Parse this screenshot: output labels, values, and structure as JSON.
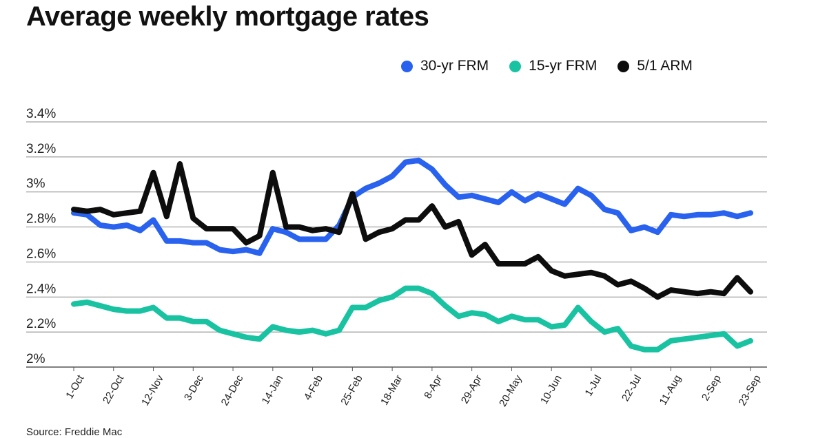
{
  "header": {
    "title": "Average weekly mortgage rates"
  },
  "footer": {
    "source": "Source: Freddie Mac"
  },
  "chart_data": {
    "type": "line",
    "title": "Average weekly mortgage rates",
    "xlabel": "",
    "ylabel": "",
    "ylim": [
      2.0,
      3.4
    ],
    "yticks": [
      2.0,
      2.2,
      2.4,
      2.6,
      2.8,
      3.0,
      3.2,
      3.4
    ],
    "ytick_labels": [
      "2%",
      "2.2%",
      "2.4%",
      "2.6%",
      "2.8%",
      "3%",
      "3.2%",
      "3.4%"
    ],
    "x_tick_labels": [
      "1-Oct",
      "22-Oct",
      "12-Nov",
      "3-Dec",
      "24-Dec",
      "14-Jan",
      "4-Feb",
      "25-Feb",
      "18-Mar",
      "8-Apr",
      "29-Apr",
      "20-May",
      "10-Jun",
      "1-Jul",
      "22-Jul",
      "11-Aug",
      "2-Sep",
      "23-Sep"
    ],
    "x_tick_every": 3,
    "grid": true,
    "legend_position": "top-right",
    "series": [
      {
        "name": "30-yr FRM",
        "color": "#2962ee",
        "values": [
          2.88,
          2.87,
          2.81,
          2.8,
          2.81,
          2.78,
          2.84,
          2.72,
          2.72,
          2.71,
          2.71,
          2.67,
          2.66,
          2.67,
          2.65,
          2.79,
          2.77,
          2.73,
          2.73,
          2.73,
          2.81,
          2.97,
          3.02,
          3.05,
          3.09,
          3.17,
          3.18,
          3.13,
          3.04,
          2.97,
          2.98,
          2.96,
          2.94,
          3.0,
          2.95,
          2.99,
          2.96,
          2.93,
          3.02,
          2.98,
          2.9,
          2.88,
          2.78,
          2.8,
          2.77,
          2.87,
          2.86,
          2.87,
          2.87,
          2.88,
          2.86,
          2.88
        ]
      },
      {
        "name": "15-yr FRM",
        "color": "#19c3a2",
        "values": [
          2.36,
          2.37,
          2.35,
          2.33,
          2.32,
          2.32,
          2.34,
          2.28,
          2.28,
          2.26,
          2.26,
          2.21,
          2.19,
          2.17,
          2.16,
          2.23,
          2.21,
          2.2,
          2.21,
          2.19,
          2.21,
          2.34,
          2.34,
          2.38,
          2.4,
          2.45,
          2.45,
          2.42,
          2.35,
          2.29,
          2.31,
          2.3,
          2.26,
          2.29,
          2.27,
          2.27,
          2.23,
          2.24,
          2.34,
          2.26,
          2.2,
          2.22,
          2.12,
          2.1,
          2.1,
          2.15,
          2.16,
          2.17,
          2.18,
          2.19,
          2.12,
          2.15
        ]
      },
      {
        "name": "5/1 ARM",
        "color": "#0d0d0d",
        "values": [
          2.9,
          2.89,
          2.9,
          2.87,
          2.88,
          2.89,
          3.11,
          2.86,
          3.16,
          2.85,
          2.79,
          2.79,
          2.79,
          2.71,
          2.75,
          3.11,
          2.8,
          2.8,
          2.78,
          2.79,
          2.77,
          2.99,
          2.73,
          2.77,
          2.79,
          2.84,
          2.84,
          2.92,
          2.8,
          2.83,
          2.64,
          2.7,
          2.59,
          2.59,
          2.59,
          2.63,
          2.55,
          2.52,
          2.53,
          2.54,
          2.52,
          2.47,
          2.49,
          2.45,
          2.4,
          2.44,
          2.43,
          2.42,
          2.43,
          2.42,
          2.51,
          2.43
        ]
      }
    ]
  }
}
